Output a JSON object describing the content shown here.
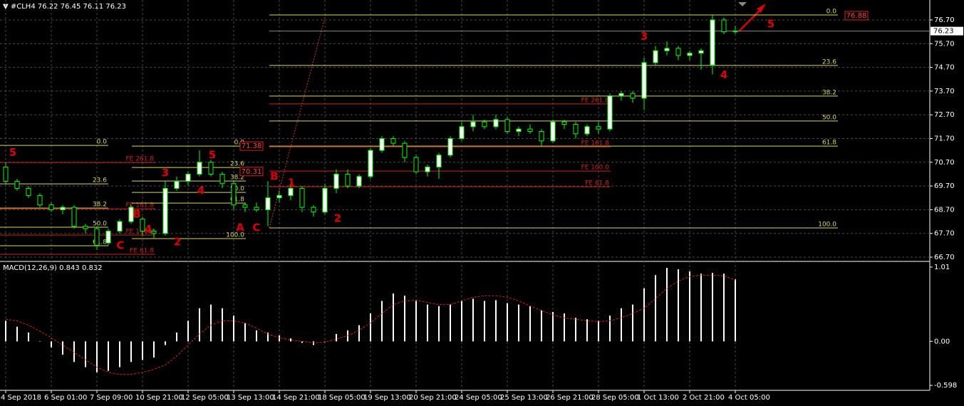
{
  "chart_data": [
    {
      "type": "candlestick",
      "title": "#CLH4",
      "categories": [
        "4 Sep 2018",
        null,
        null,
        null,
        "6 Sep 01:00",
        null,
        null,
        null,
        "7 Sep 09:00",
        null,
        null,
        null,
        "10 Sep 21:00",
        null,
        null,
        null,
        "12 Sep 05:00",
        null,
        null,
        null,
        "13 Sep 13:00",
        null,
        null,
        null,
        "14 Sep 21:00",
        null,
        null,
        null,
        "18 Sep 05:00",
        null,
        null,
        null,
        "19 Sep 13:00",
        null,
        null,
        null,
        "20 Sep 21:00",
        null,
        null,
        null,
        "24 Sep 05:00",
        null,
        null,
        null,
        "25 Sep 13:00",
        null,
        null,
        null,
        "26 Sep 21:00",
        null,
        null,
        null,
        "28 Sep 05:00",
        null,
        null,
        null,
        "1 Oct 13:00",
        null,
        null,
        null,
        "2 Oct 21:00",
        null,
        null,
        null,
        "4 Oct 05:00"
      ],
      "open": [
        70.5,
        69.9,
        69.6,
        69.3,
        68.9,
        68.7,
        68.8,
        68.0,
        67.9,
        67.3,
        67.8,
        68.2,
        68.3,
        67.8,
        67.7,
        69.6,
        69.9,
        70.2,
        70.7,
        70.2,
        69.8,
        68.9,
        68.8,
        68.7,
        69.2,
        69.3,
        69.6,
        68.8,
        68.6,
        69.6,
        70.2,
        69.7,
        70.1,
        71.2,
        71.7,
        71.5,
        70.9,
        70.3,
        70.5,
        71.0,
        71.7,
        72.2,
        72.4,
        72.2,
        72.5,
        72.0,
        72.1,
        72.0,
        71.6,
        72.4,
        72.3,
        71.9,
        72.2,
        72.1,
        73.5,
        73.6,
        73.4,
        74.9,
        75.4,
        75.5,
        75.2,
        75.3,
        74.8,
        76.7,
        76.22
      ],
      "high": [
        70.7,
        70.0,
        69.7,
        69.4,
        69.0,
        68.9,
        68.9,
        68.1,
        68.0,
        67.9,
        68.3,
        68.9,
        68.4,
        67.9,
        69.9,
        70.1,
        70.3,
        71.2,
        70.8,
        70.3,
        69.9,
        69.0,
        69.0,
        69.9,
        69.5,
        69.8,
        69.7,
        68.9,
        69.8,
        70.4,
        70.4,
        70.2,
        71.3,
        71.8,
        71.8,
        71.6,
        71.0,
        70.6,
        71.1,
        71.8,
        72.4,
        72.7,
        72.5,
        72.7,
        72.6,
        72.2,
        72.3,
        72.1,
        72.5,
        72.5,
        72.4,
        72.3,
        72.4,
        73.6,
        73.7,
        73.7,
        75.1,
        75.6,
        75.8,
        75.6,
        75.4,
        75.5,
        76.9,
        76.8,
        76.45
      ],
      "low": [
        69.8,
        69.5,
        69.2,
        68.8,
        68.6,
        68.5,
        67.9,
        67.7,
        67.0,
        67.2,
        67.7,
        68.1,
        67.6,
        67.5,
        67.6,
        69.5,
        69.7,
        70.1,
        70.1,
        69.6,
        68.7,
        68.6,
        68.6,
        68.0,
        69.0,
        69.1,
        68.6,
        68.4,
        68.5,
        69.4,
        69.6,
        69.6,
        70.0,
        71.1,
        71.4,
        70.7,
        70.2,
        70.1,
        70.0,
        70.9,
        71.6,
        72.0,
        72.1,
        72.1,
        71.9,
        71.8,
        71.9,
        71.4,
        71.5,
        72.1,
        71.7,
        71.8,
        71.9,
        72.0,
        73.3,
        73.2,
        72.9,
        74.8,
        75.2,
        75.0,
        75.0,
        74.6,
        74.4,
        76.1,
        76.11
      ],
      "close": [
        69.9,
        69.6,
        69.3,
        68.9,
        68.7,
        68.8,
        68.0,
        67.9,
        67.2,
        67.8,
        68.2,
        68.8,
        67.8,
        67.7,
        69.6,
        69.9,
        70.2,
        70.7,
        70.2,
        69.8,
        68.9,
        68.8,
        68.7,
        69.2,
        69.3,
        69.6,
        68.8,
        68.6,
        69.6,
        70.2,
        69.7,
        70.1,
        71.2,
        71.7,
        71.5,
        70.9,
        70.3,
        70.5,
        71.0,
        71.7,
        72.2,
        72.4,
        72.2,
        72.5,
        72.0,
        72.1,
        72.0,
        71.6,
        72.4,
        72.3,
        71.9,
        72.2,
        72.1,
        73.5,
        73.6,
        73.4,
        74.9,
        75.4,
        75.5,
        75.2,
        75.3,
        75.4,
        76.7,
        76.2,
        76.23
      ],
      "up_color": "#ffffff",
      "down_color": "#000000",
      "wick_color": "#00ff00",
      "ylim": [
        66.55,
        77.54
      ],
      "yticks": [
        {
          "value": 76.7,
          "label": "76.70"
        },
        {
          "value": 75.7,
          "label": "75.70"
        },
        {
          "value": 74.7,
          "label": "74.70"
        },
        {
          "value": 73.7,
          "label": "73.70"
        },
        {
          "value": 72.7,
          "label": "72.70"
        },
        {
          "value": 71.7,
          "label": "71.70"
        },
        {
          "value": 70.7,
          "label": "70.70"
        },
        {
          "value": 69.7,
          "label": "69.70"
        },
        {
          "value": 68.7,
          "label": "68.70"
        },
        {
          "value": 67.7,
          "label": "67.70"
        },
        {
          "value": 66.7,
          "label": "66.70"
        }
      ],
      "grid": true,
      "fib_sets": [
        {
          "color": "#d8d860",
          "levels": [
            {
              "label": "0.0",
              "value": 71.41
            },
            {
              "label": "23.6",
              "value": 69.79
            },
            {
              "label": "38.2",
              "value": 68.77
            },
            {
              "label": "50.0",
              "value": 67.96
            },
            {
              "label": "61.8",
              "value": 67.18
            }
          ]
        },
        {
          "color": "#d02020",
          "levels": [
            {
              "label": "FE 261.8",
              "value": 70.69
            },
            {
              "label": "FE 161.8",
              "value": 68.74
            },
            {
              "label": "FE 100.0",
              "value": 67.63
            },
            {
              "label": "FE 61.8",
              "value": 66.82
            }
          ]
        },
        {
          "color": "#d8d860",
          "levels": [
            {
              "label": "0.0",
              "value": 71.38
            },
            {
              "label": "23.6",
              "value": 70.48
            },
            {
              "label": "38.2",
              "value": 69.91
            },
            {
              "label": "50.0",
              "value": 69.43
            },
            {
              "label": "61.8",
              "value": 68.98
            },
            {
              "label": "100.0",
              "value": 67.48
            }
          ]
        },
        {
          "color": "#d8d860",
          "levels": [
            {
              "label": "0.0",
              "value": 76.91
            },
            {
              "label": "23.6",
              "value": 74.78
            },
            {
              "label": "38.2",
              "value": 73.49
            },
            {
              "label": "50.0",
              "value": 72.44
            },
            {
              "label": "61.8",
              "value": 71.38
            },
            {
              "label": "100.0",
              "value": 67.93
            }
          ]
        },
        {
          "color": "#d02020",
          "levels": [
            {
              "label": "FE 261.8",
              "value": 73.16
            },
            {
              "label": "FE 161.8",
              "value": 71.35
            },
            {
              "label": "FE 100.0",
              "value": 70.33
            },
            {
              "label": "FE 61.8",
              "value": 69.67
            }
          ]
        }
      ],
      "price_tags": [
        76.88,
        71.38,
        70.31
      ],
      "wave_labels": [
        {
          "label": "5",
          "value": 71.1
        },
        {
          "label": "3",
          "value": 70.25
        },
        {
          "label": "4",
          "value": 69.5
        },
        {
          "label": "5",
          "value": 71.0
        },
        {
          "label": "B",
          "value": 68.5
        },
        {
          "label": "4",
          "value": 67.85
        },
        {
          "label": "2",
          "value": 67.33
        },
        {
          "label": "C",
          "value": 67.18
        },
        {
          "label": "A",
          "value": 67.93
        },
        {
          "label": "C",
          "value": 67.93
        },
        {
          "label": "B",
          "value": 70.1
        },
        {
          "label": "1",
          "value": 69.82
        },
        {
          "label": "2",
          "value": 68.32
        },
        {
          "label": "3",
          "value": 75.99
        },
        {
          "label": "4",
          "value": 74.37
        },
        {
          "label": "5",
          "value": 76.52
        }
      ]
    },
    {
      "type": "macd",
      "title": "MACD(12,26,9)",
      "macd_value": 0.843,
      "signal_value": 0.832,
      "values": [
        0.28,
        0.2,
        0.12,
        0.0,
        -0.08,
        -0.18,
        -0.28,
        -0.35,
        -0.42,
        -0.4,
        -0.35,
        -0.28,
        -0.25,
        -0.22,
        -0.05,
        0.12,
        0.28,
        0.45,
        0.5,
        0.45,
        0.35,
        0.25,
        0.15,
        0.12,
        0.08,
        0.04,
        -0.02,
        -0.05,
        0.0,
        0.1,
        0.15,
        0.22,
        0.38,
        0.55,
        0.65,
        0.62,
        0.55,
        0.5,
        0.48,
        0.5,
        0.55,
        0.58,
        0.55,
        0.56,
        0.52,
        0.5,
        0.48,
        0.42,
        0.4,
        0.38,
        0.32,
        0.3,
        0.28,
        0.35,
        0.45,
        0.5,
        0.72,
        0.9,
        1.0,
        0.98,
        0.95,
        0.92,
        0.93,
        0.92,
        0.843
      ],
      "signal": [
        0.3,
        0.28,
        0.22,
        0.14,
        0.05,
        -0.05,
        -0.15,
        -0.25,
        -0.35,
        -0.42,
        -0.45,
        -0.45,
        -0.42,
        -0.38,
        -0.32,
        -0.2,
        -0.05,
        0.1,
        0.22,
        0.28,
        0.28,
        0.25,
        0.18,
        0.1,
        0.05,
        0.02,
        0.0,
        -0.02,
        -0.01,
        0.03,
        0.08,
        0.15,
        0.25,
        0.38,
        0.5,
        0.55,
        0.56,
        0.53,
        0.5,
        0.5,
        0.55,
        0.6,
        0.62,
        0.62,
        0.6,
        0.55,
        0.48,
        0.42,
        0.36,
        0.32,
        0.3,
        0.28,
        0.27,
        0.28,
        0.32,
        0.38,
        0.45,
        0.58,
        0.72,
        0.82,
        0.88,
        0.9,
        0.9,
        0.89,
        0.832
      ],
      "color": "#ffffff",
      "signal_color": "#d02020",
      "ylim": [
        -0.665,
        1.077
      ],
      "yticks": [
        1.01,
        {
          "value": 0,
          "label": "0.00"
        },
        -0.598
      ]
    }
  ]
}
